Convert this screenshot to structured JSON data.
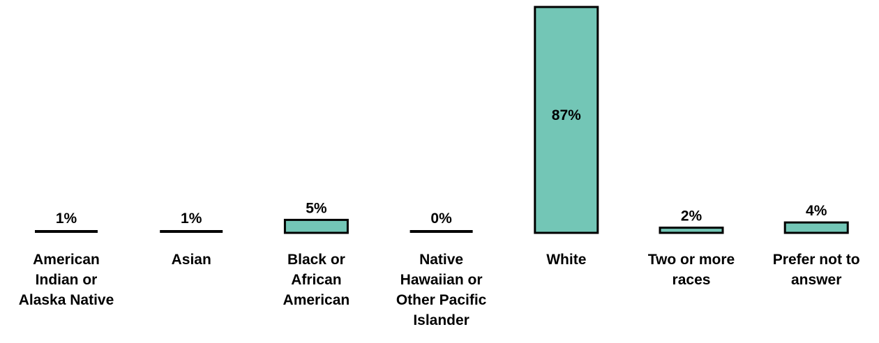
{
  "chart_data": {
    "type": "bar",
    "categories": [
      "American Indian or Alaska Native",
      "Asian",
      "Black or African American",
      "Native Hawaiian or Other Pacific Islander",
      "White",
      "Two or more races",
      "Prefer not to answer"
    ],
    "category_lines": [
      [
        "American",
        "Indian or",
        "Alaska Native"
      ],
      [
        "Asian"
      ],
      [
        "Black or",
        "African",
        "American"
      ],
      [
        "Native",
        "Hawaiian or",
        "Other Pacific",
        "Islander"
      ],
      [
        "White"
      ],
      [
        "Two or more",
        "races"
      ],
      [
        "Prefer not to",
        "answer"
      ]
    ],
    "values": [
      1,
      1,
      5,
      0,
      87,
      2,
      4
    ],
    "value_labels": [
      "1%",
      "1%",
      "5%",
      "0%",
      "87%",
      "2%",
      "4%"
    ],
    "ylim": [
      0,
      100
    ],
    "title": "",
    "xlabel": "",
    "ylabel": "",
    "grid": false,
    "bar_color": "#73c6b6",
    "outline_color": "#000000"
  }
}
